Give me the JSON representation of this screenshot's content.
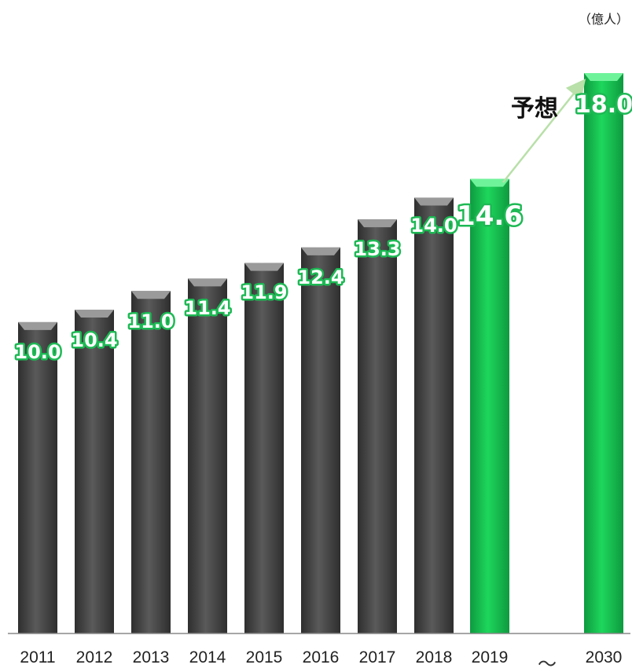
{
  "chart_data": {
    "type": "bar",
    "unit_label": "（億人）",
    "categories": [
      "2011",
      "2012",
      "2013",
      "2014",
      "2015",
      "2016",
      "2017",
      "2018",
      "2019",
      "2030"
    ],
    "values": [
      10.0,
      10.4,
      11.0,
      11.4,
      11.9,
      12.4,
      13.3,
      14.0,
      14.6,
      18.0
    ],
    "value_labels": [
      "10.0",
      "10.4",
      "11.0",
      "11.4",
      "11.9",
      "12.4",
      "13.3",
      "14.0",
      "14.6",
      "18.0"
    ],
    "axis_break_symbol": "～",
    "forecast_label": "予想",
    "colors": {
      "actual": "#4a4a4a",
      "highlight": "#1db954",
      "label_outline": "#1db954",
      "arrow": "#b8e0a8"
    },
    "highlighted": [
      "2019",
      "2030"
    ],
    "grid": false,
    "legend": "none"
  }
}
